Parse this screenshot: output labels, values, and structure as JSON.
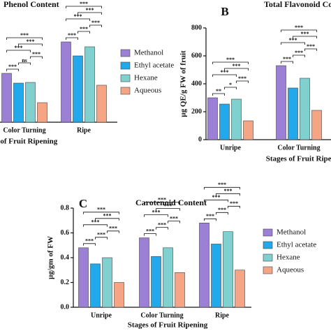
{
  "chart_data": [
    {
      "type": "bar",
      "title": "Phenol Content",
      "categories": [
        "Color Turning",
        "Ripe"
      ],
      "x_label": "Stages of Fruit Ripening",
      "ylim": [
        0,
        120
      ],
      "legend": true,
      "series": [
        {
          "name": "Methanol",
          "color": "#9b80d6",
          "values": [
            70,
            115
          ]
        },
        {
          "name": "Ethyl acetate",
          "color": "#21a9ec",
          "values": [
            56,
            95
          ]
        },
        {
          "name": "Hexane",
          "color": "#7fd0cf",
          "values": [
            57,
            108
          ]
        },
        {
          "name": "Aqueous",
          "color": "#f5a583",
          "values": [
            28,
            53
          ]
        }
      ],
      "annotations": [
        [
          "***",
          "ns",
          "***",
          "***",
          "***",
          "***"
        ],
        [
          "***",
          "***",
          "***",
          "***",
          "***",
          "***"
        ]
      ]
    },
    {
      "type": "bar",
      "panel": "B",
      "title": "Total Flavonoid Content",
      "categories": [
        "Unripe",
        "Color Turning"
      ],
      "x_label": "Stages of Fruit Ripening",
      "y_label": "µg QE/g FW of fruit",
      "ylim": [
        0,
        800
      ],
      "yticks": [
        0,
        200,
        400,
        600,
        800
      ],
      "legend": false,
      "series": [
        {
          "name": "Methanol",
          "color": "#9b80d6",
          "values": [
            300,
            530
          ]
        },
        {
          "name": "Ethyl acetate",
          "color": "#21a9ec",
          "values": [
            255,
            370
          ]
        },
        {
          "name": "Hexane",
          "color": "#7fd0cf",
          "values": [
            290,
            440
          ]
        },
        {
          "name": "Aqueous",
          "color": "#f5a583",
          "values": [
            135,
            210
          ]
        }
      ],
      "annotations": [
        [
          "**",
          "*",
          "***",
          "***",
          "***",
          "***"
        ],
        [
          "***",
          "***",
          "***",
          "***",
          "***",
          "***"
        ]
      ]
    },
    {
      "type": "bar",
      "panel": "C",
      "title": "Carotenoid Content",
      "categories": [
        "Unripe",
        "Color Turning",
        "Ripe"
      ],
      "x_label": "Stages of Fruit Ripening",
      "y_label": "µg/gm of FW",
      "ylim": [
        0,
        0.8
      ],
      "yticks": [
        {
          "value": 0,
          "label": "0.0"
        },
        {
          "value": 0.2,
          "label": "0.2"
        },
        {
          "value": 0.4,
          "label": "0.4"
        },
        {
          "value": 0.6,
          "label": "0.6"
        },
        {
          "value": 0.8,
          "label": "0.8"
        }
      ],
      "legend": true,
      "series": [
        {
          "name": "Methanol",
          "color": "#9b80d6",
          "values": [
            0.48,
            0.56,
            0.68
          ]
        },
        {
          "name": "Ethyl acetate",
          "color": "#21a9ec",
          "values": [
            0.35,
            0.41,
            0.51
          ]
        },
        {
          "name": "Hexane",
          "color": "#7fd0cf",
          "values": [
            0.4,
            0.48,
            0.61
          ]
        },
        {
          "name": "Aqueous",
          "color": "#f5a583",
          "values": [
            0.2,
            0.28,
            0.3
          ]
        }
      ],
      "annotations": [
        [
          "***",
          "***",
          "***",
          "***",
          "***",
          "***"
        ],
        [
          "***",
          "***",
          "***",
          "***",
          "***",
          "***"
        ],
        [
          "***",
          "***",
          "***",
          "***",
          "***",
          "***"
        ]
      ]
    }
  ]
}
